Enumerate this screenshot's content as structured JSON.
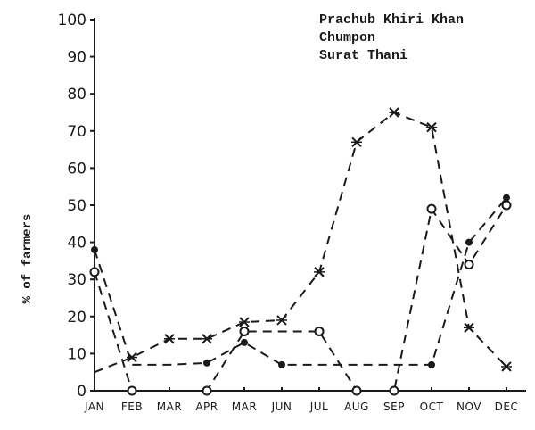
{
  "chart_data": {
    "type": "line",
    "title": "",
    "xlabel": "",
    "ylabel": "% of farmers",
    "ylim": [
      0,
      100
    ],
    "yticks": [
      0,
      10,
      20,
      30,
      40,
      50,
      60,
      70,
      80,
      90,
      100
    ],
    "grid": false,
    "legend_position": "top-right",
    "categories": [
      "JAN",
      "FEB",
      "MAR",
      "APR",
      "MAR",
      "JUN",
      "JUL",
      "AUG",
      "SEP",
      "OCT",
      "NOV",
      "DEC"
    ],
    "series": [
      {
        "name": "Prachub Khiri Khan",
        "marker": "filled-circle",
        "values": [
          38,
          7,
          7,
          7.5,
          13,
          7,
          7,
          7,
          7,
          7,
          40,
          52
        ],
        "marked": [
          true,
          false,
          false,
          true,
          true,
          true,
          false,
          false,
          false,
          true,
          true,
          true
        ]
      },
      {
        "name": "Chumpon",
        "marker": "open-circle",
        "values": [
          32,
          0,
          0,
          0,
          16,
          16,
          16,
          0,
          0,
          49,
          34,
          50
        ],
        "marked": [
          true,
          true,
          false,
          true,
          true,
          false,
          true,
          true,
          true,
          true,
          true,
          true
        ]
      },
      {
        "name": "Surat Thani",
        "marker": "x",
        "values": [
          5,
          9,
          14,
          14,
          18.5,
          19,
          32,
          67,
          75,
          71,
          17,
          6.5
        ],
        "marked": [
          false,
          true,
          true,
          true,
          true,
          true,
          true,
          true,
          true,
          true,
          true,
          true
        ]
      }
    ]
  },
  "legend": {
    "items": [
      "Prachub Khiri Khan",
      "Chumpon",
      "Surat Thani"
    ]
  },
  "axis": {
    "y_label": "% of farmers"
  }
}
